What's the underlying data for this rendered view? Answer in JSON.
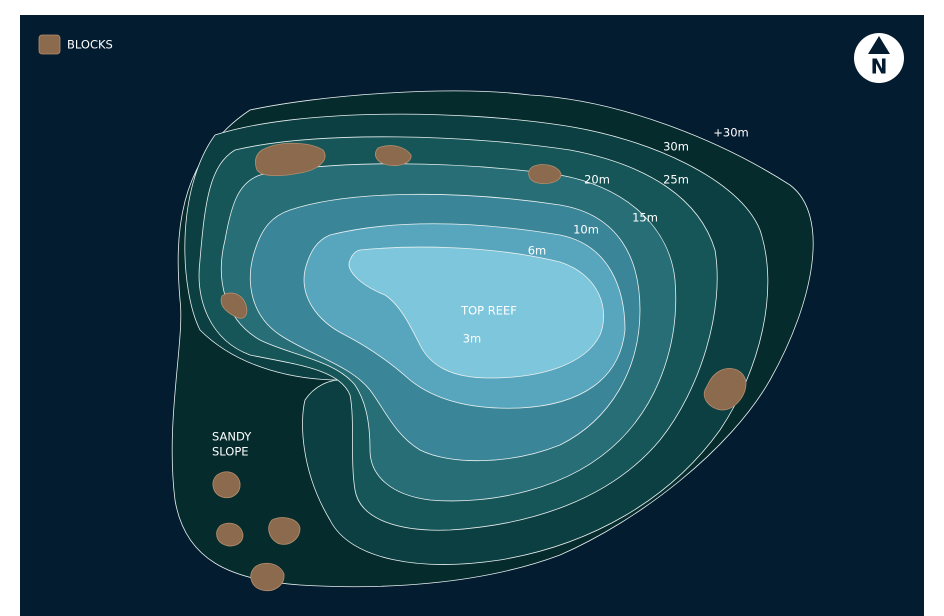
{
  "legend": {
    "label": "BLOCKS"
  },
  "compass": {
    "label": "N"
  },
  "depth_labels": [
    "+30m",
    "30m",
    "25m",
    "20m",
    "15m",
    "10m",
    "6m"
  ],
  "areas": {
    "top_reef": "TOP REEF",
    "top_reef_depth": "3m",
    "sandy_slope": [
      "SANDY",
      "SLOPE"
    ]
  }
}
